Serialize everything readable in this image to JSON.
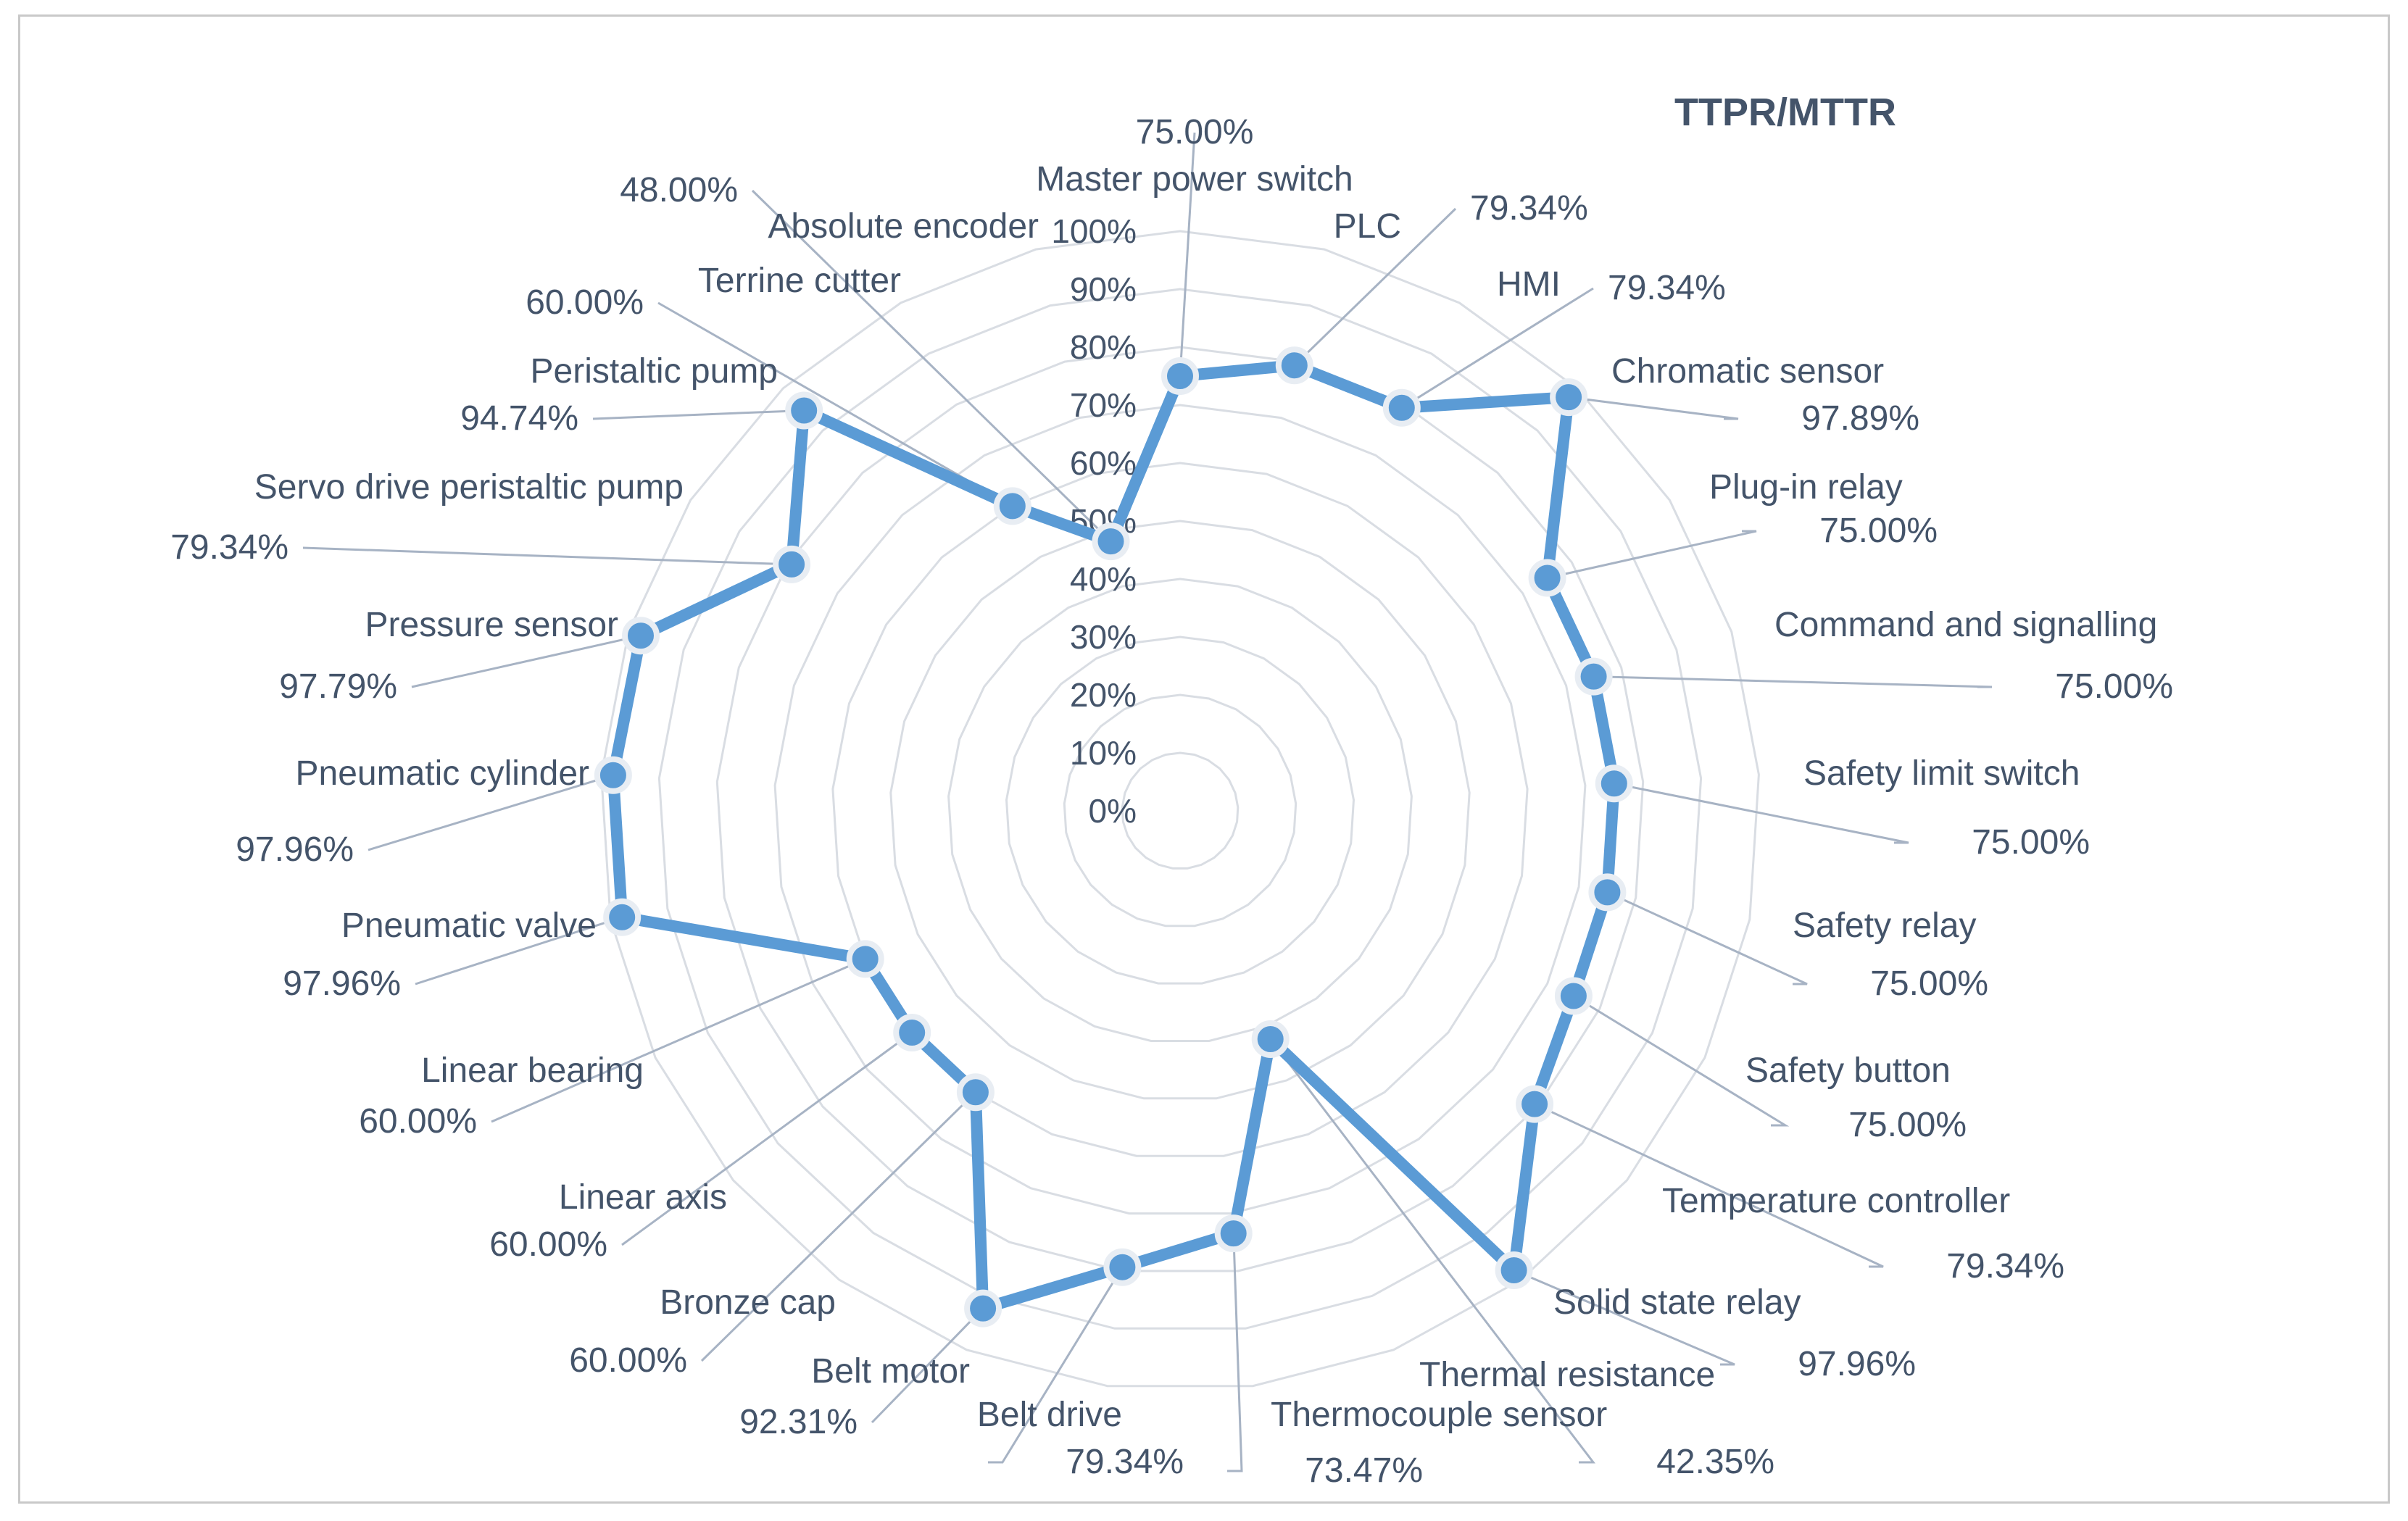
{
  "chart_data": {
    "type": "radar",
    "title": "TTPR/MTTR",
    "ylim": [
      0,
      100
    ],
    "ticks": [
      "0%",
      "10%",
      "20%",
      "30%",
      "40%",
      "50%",
      "60%",
      "70%",
      "80%",
      "90%",
      "100%"
    ],
    "series": [
      {
        "name": "TTPR/MTTR",
        "color": "#5b9bd5",
        "categories": [
          "Master power switch",
          "PLC",
          "HMI",
          "Chromatic sensor",
          "Plug-in relay",
          "Command and signalling",
          "Safety limit switch",
          "Safety relay",
          "Safety button",
          "Temperature controller",
          "Solid state relay",
          "Thermal resistance",
          "Thermocouple sensor",
          "Belt drive",
          "Belt motor",
          "Bronze cap",
          "Linear axis",
          "Linear bearing",
          "Pneumatic valve",
          "Pneumatic cylinder",
          "Pressure sensor",
          "Servo drive peristaltic pump",
          "Peristaltic pump",
          "Terrine cutter",
          "Absolute encoder"
        ],
        "values": [
          75.0,
          79.34,
          79.34,
          97.89,
          75.0,
          75.0,
          75.0,
          75.0,
          75.0,
          79.34,
          97.96,
          42.35,
          73.47,
          79.34,
          92.31,
          60.0,
          60.0,
          60.0,
          97.96,
          97.96,
          97.79,
          79.34,
          94.74,
          60.0,
          48.0
        ],
        "value_labels": [
          "75.00%",
          "79.34%",
          "79.34%",
          "97.89%",
          "75.00%",
          "75.00%",
          "75.00%",
          "75.00%",
          "75.00%",
          "79.34%",
          "97.96%",
          "42.35%",
          "73.47%",
          "79.34%",
          "92.31%",
          "60.00%",
          "60.00%",
          "60.00%",
          "97.96%",
          "97.96%",
          "97.79%",
          "79.34%",
          "94.74%",
          "60.00%",
          "48.00%"
        ]
      }
    ]
  },
  "colors": {
    "line": "#5b9bd5",
    "grid": "#d9dde3",
    "leader": "#a7b3c4",
    "text": "#44546a",
    "border": "#c9c9c9"
  }
}
